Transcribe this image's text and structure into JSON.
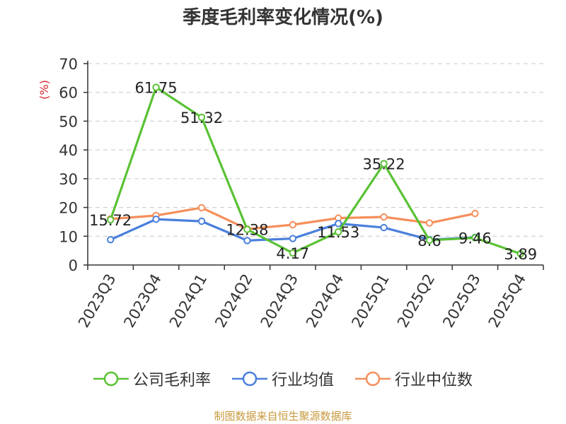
{
  "title": "季度毛利率变化情况(%)",
  "source_note": "制图数据来自恒生聚源数据库",
  "chart_data": {
    "type": "line",
    "title": "季度毛利率变化情况(%)",
    "ylabel": "(%)",
    "xlabel": "",
    "ylim": [
      0,
      70
    ],
    "yticks": [
      0,
      10,
      20,
      30,
      40,
      50,
      60,
      70
    ],
    "grid": true,
    "legend_position": "bottom",
    "categories": [
      "2023Q3",
      "2023Q4",
      "2024Q1",
      "2024Q2",
      "2024Q3",
      "2024Q4",
      "2025Q1",
      "2025Q2",
      "2025Q3",
      "2025Q4"
    ],
    "series": [
      {
        "name": "公司毛利率",
        "color": "#59c234",
        "values": [
          15.72,
          61.75,
          51.32,
          12.38,
          4.17,
          11.53,
          35.22,
          8.6,
          9.46,
          3.89
        ],
        "labels": [
          "15.72",
          "61.75",
          "51.32",
          "12.38",
          "4.17",
          "11.53",
          "35.22",
          "8.6",
          "9.46",
          "3.89"
        ]
      },
      {
        "name": "行业均值",
        "color": "#4a7fdc",
        "values": [
          8.8,
          15.9,
          15.2,
          8.5,
          9.2,
          14.4,
          13.0,
          8.8,
          9.6,
          null
        ]
      },
      {
        "name": "行业中位数",
        "color": "#f58f5b",
        "values": [
          16.0,
          17.2,
          19.9,
          12.5,
          14.0,
          16.3,
          16.7,
          14.6,
          17.9,
          null
        ]
      }
    ]
  }
}
